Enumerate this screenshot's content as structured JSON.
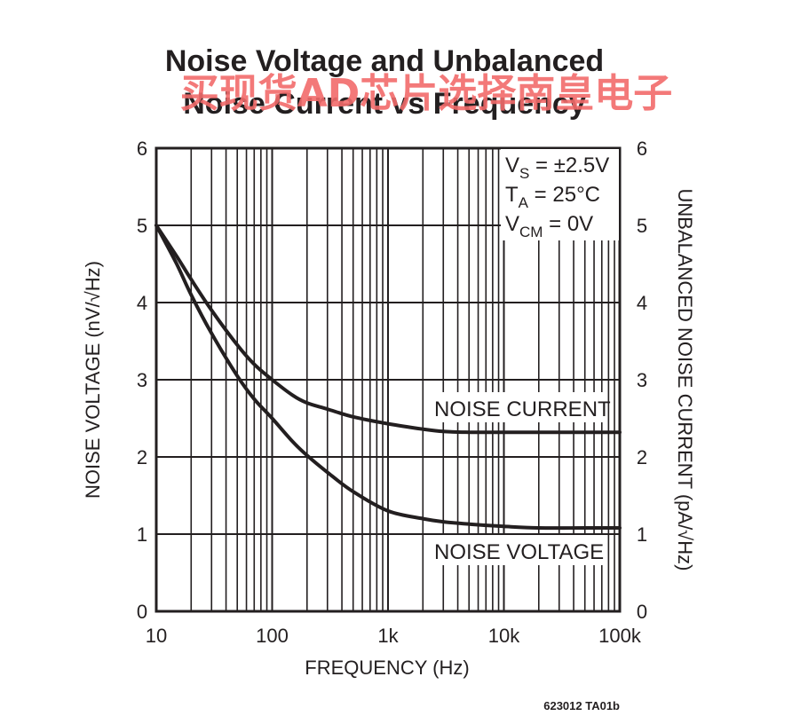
{
  "chart_data": {
    "type": "line",
    "title_line1": "Noise Voltage and Unbalanced",
    "title_line2": "Noise Current vs Frequency",
    "xlabel": "FREQUENCY (Hz)",
    "ylabel_left": "NOISE VOLTAGE (nV/√Hz)",
    "ylabel_right": "UNBALANCED NOISE CURRENT (pA/√Hz)",
    "x_scale": "log",
    "xlim": [
      10,
      100000
    ],
    "ylim": [
      0,
      6
    ],
    "x_tick_labels": [
      "10",
      "100",
      "1k",
      "10k",
      "100k"
    ],
    "y_ticks": [
      0,
      1,
      2,
      3,
      4,
      5,
      6
    ],
    "grid": true,
    "conditions": [
      {
        "main": "V",
        "sub": "S",
        "rest": " = ±2.5V"
      },
      {
        "main": "T",
        "sub": "A",
        "rest": " = 25°C"
      },
      {
        "main": "V",
        "sub": "CM",
        "rest": " = 0V"
      }
    ],
    "series": [
      {
        "name": "NOISE CURRENT",
        "x": [
          10,
          15,
          20,
          30,
          50,
          70,
          100,
          150,
          200,
          300,
          500,
          1000,
          2000,
          3000,
          5000,
          10000,
          20000,
          50000,
          100000
        ],
        "values": [
          5.0,
          4.6,
          4.3,
          3.9,
          3.45,
          3.2,
          3.0,
          2.8,
          2.7,
          2.62,
          2.52,
          2.43,
          2.36,
          2.33,
          2.32,
          2.32,
          2.32,
          2.32,
          2.32
        ]
      },
      {
        "name": "NOISE VOLTAGE",
        "x": [
          10,
          15,
          20,
          30,
          50,
          70,
          100,
          150,
          200,
          300,
          500,
          1000,
          2000,
          3000,
          5000,
          10000,
          20000,
          50000,
          100000
        ],
        "values": [
          5.0,
          4.5,
          4.1,
          3.6,
          3.05,
          2.75,
          2.5,
          2.2,
          2.02,
          1.8,
          1.55,
          1.3,
          1.2,
          1.16,
          1.13,
          1.1,
          1.08,
          1.08,
          1.08
        ]
      }
    ],
    "part_number": "623012 TA01b"
  },
  "watermark_text": "买现货AD芯片选择南皇电子",
  "colors": {
    "line": "#231f20",
    "grid": "#231f20",
    "watermark": "#f26b6b",
    "background": "#ffffff"
  }
}
